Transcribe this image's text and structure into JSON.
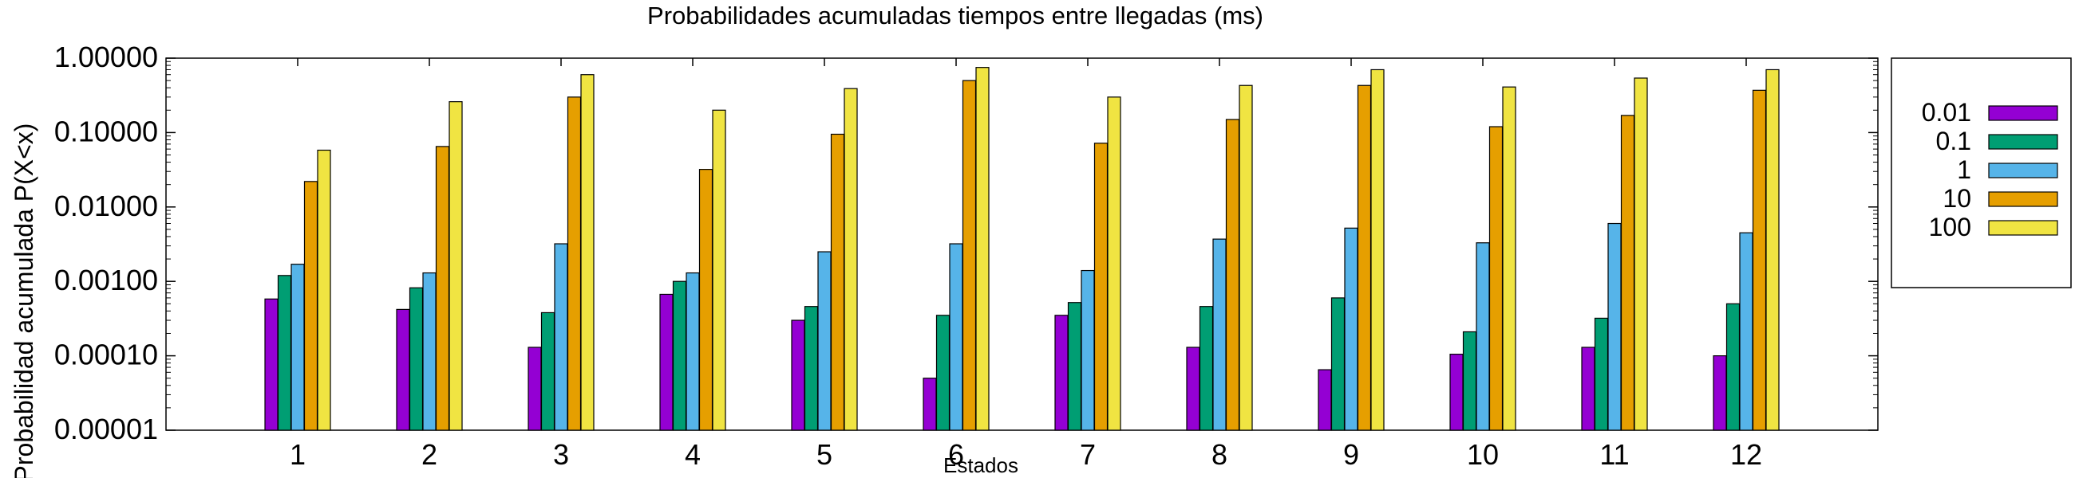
{
  "chart_data": {
    "type": "bar",
    "title": "Probabilidades acumuladas tiempos entre llegadas (ms)",
    "xlabel": "Estados",
    "ylabel": "Probabilidad acumulada P(X<x)",
    "y_scale": "log",
    "ylim": [
      1e-05,
      1.0
    ],
    "y_ticks": [
      "0.00001",
      "0.00010",
      "0.00100",
      "0.01000",
      "0.10000",
      "1.00000"
    ],
    "categories": [
      "1",
      "2",
      "3",
      "4",
      "5",
      "6",
      "7",
      "8",
      "9",
      "10",
      "11",
      "12"
    ],
    "legend_position": "right",
    "grid": false,
    "series": [
      {
        "name": "0.01",
        "color": "#9400d3",
        "values": [
          0.00058,
          0.00042,
          0.00013,
          0.00067,
          0.0003,
          5e-05,
          0.00035,
          0.00013,
          6.5e-05,
          0.000105,
          0.00013,
          0.0001
        ]
      },
      {
        "name": "0.1",
        "color": "#009e73",
        "values": [
          0.0012,
          0.00082,
          0.00038,
          0.001,
          0.00046,
          0.00035,
          0.00052,
          0.00046,
          0.0006,
          0.00021,
          0.00032,
          0.0005
        ]
      },
      {
        "name": "1",
        "color": "#56b4e9",
        "values": [
          0.0017,
          0.0013,
          0.0032,
          0.0013,
          0.0025,
          0.0032,
          0.0014,
          0.0037,
          0.0052,
          0.0033,
          0.006,
          0.0045
        ]
      },
      {
        "name": "10",
        "color": "#e69f00",
        "values": [
          0.022,
          0.065,
          0.3,
          0.032,
          0.095,
          0.5,
          0.072,
          0.15,
          0.43,
          0.12,
          0.17,
          0.37
        ]
      },
      {
        "name": "100",
        "color": "#f0e442",
        "values": [
          0.058,
          0.26,
          0.6,
          0.2,
          0.39,
          0.75,
          0.3,
          0.43,
          0.7,
          0.41,
          0.54,
          0.7
        ]
      }
    ]
  }
}
